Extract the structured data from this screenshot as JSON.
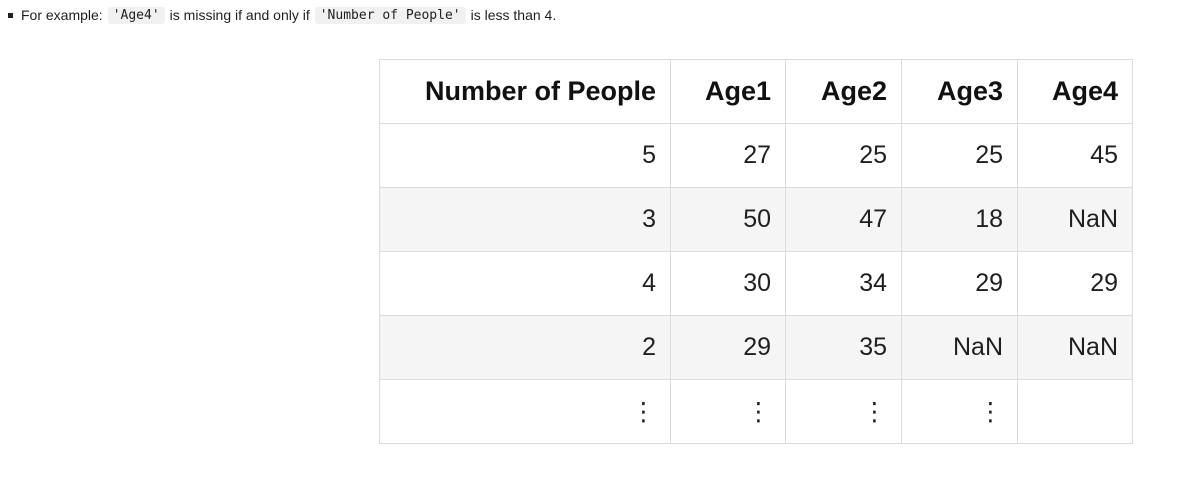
{
  "note": {
    "prefix": "For example:",
    "code_age4": "'Age4'",
    "middle": "is missing if and only if",
    "code_people": "'Number of People'",
    "suffix": "is less than 4."
  },
  "table": {
    "headers": [
      "Number of People",
      "Age1",
      "Age2",
      "Age3",
      "Age4"
    ],
    "rows": [
      [
        "5",
        "27",
        "25",
        "25",
        "45"
      ],
      [
        "3",
        "50",
        "47",
        "18",
        "NaN"
      ],
      [
        "4",
        "30",
        "34",
        "29",
        "29"
      ],
      [
        "2",
        "29",
        "35",
        "NaN",
        "NaN"
      ],
      [
        "⋮",
        "⋮",
        "⋮",
        "⋮",
        ""
      ]
    ]
  }
}
